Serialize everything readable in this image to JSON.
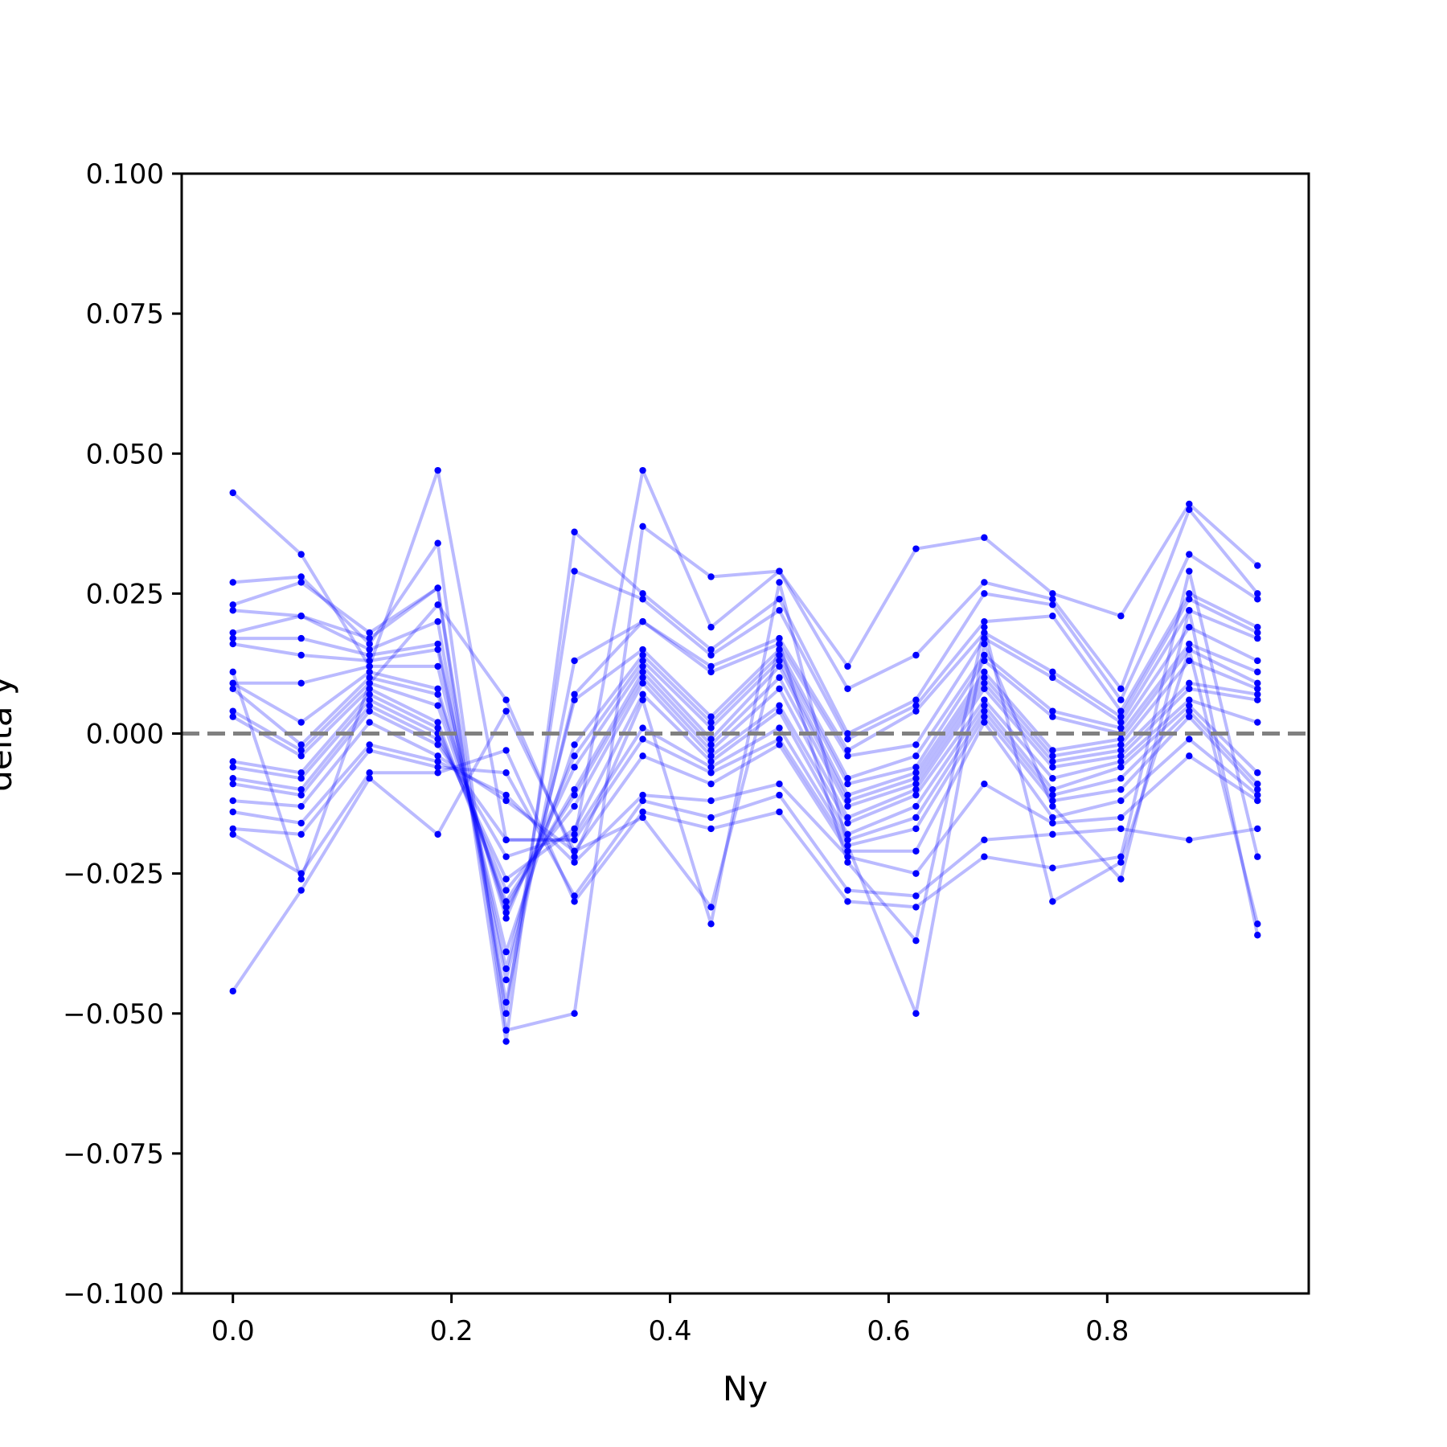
{
  "chart_data": {
    "type": "line",
    "xlabel": "Ny",
    "ylabel": "delta y",
    "xlim": [
      -0.046875,
      0.984375
    ],
    "ylim": [
      -0.1,
      0.1
    ],
    "x_ticks": [
      0.0,
      0.2,
      0.4,
      0.6,
      0.8
    ],
    "x_tick_labels": [
      "0.0",
      "0.2",
      "0.4",
      "0.6",
      "0.8"
    ],
    "y_ticks": [
      0.1,
      0.075,
      0.05,
      0.025,
      0.0,
      -0.025,
      -0.05,
      -0.075,
      -0.1
    ],
    "y_tick_labels": [
      "0.100",
      "0.075",
      "0.050",
      "0.025",
      "0.000",
      "−0.025",
      "−0.050",
      "−0.075",
      "−0.100"
    ],
    "grid": false,
    "legend": "none",
    "reference_line": {
      "y": 0.0,
      "style": "dashed",
      "color": "#808080"
    },
    "series_color": "#0000ff",
    "series_line_opacity": 0.27,
    "x": [
      0.0,
      0.0625,
      0.125,
      0.1875,
      0.25,
      0.3125,
      0.375,
      0.4375,
      0.5,
      0.5625,
      0.625,
      0.6875,
      0.75,
      0.8125,
      0.875,
      0.9375
    ],
    "series": [
      {
        "values": [
          0.043,
          0.032,
          0.012,
          0.047,
          -0.019,
          -0.019,
          0.047,
          0.019,
          0.029,
          0.012,
          0.033,
          0.035,
          0.025,
          0.021,
          0.041,
          0.03
        ]
      },
      {
        "values": [
          0.027,
          0.028,
          0.016,
          0.034,
          -0.053,
          -0.05,
          0.037,
          0.028,
          0.029,
          0.008,
          0.014,
          0.027,
          0.024,
          0.008,
          0.04,
          0.025
        ]
      },
      {
        "values": [
          0.023,
          0.027,
          0.018,
          0.026,
          -0.055,
          0.036,
          0.025,
          0.015,
          0.024,
          0.0,
          0.006,
          0.025,
          0.023,
          0.006,
          0.032,
          0.024
        ]
      },
      {
        "values": [
          0.022,
          0.021,
          0.017,
          0.026,
          -0.05,
          0.029,
          0.024,
          0.014,
          0.022,
          -0.001,
          0.005,
          0.02,
          0.021,
          0.004,
          0.025,
          0.019
        ]
      },
      {
        "values": [
          0.018,
          0.021,
          0.015,
          0.02,
          -0.048,
          0.013,
          0.02,
          0.012,
          0.017,
          -0.003,
          0.004,
          0.018,
          0.011,
          0.003,
          0.024,
          0.018
        ]
      },
      {
        "values": [
          0.017,
          0.017,
          0.014,
          0.016,
          -0.044,
          0.007,
          0.02,
          0.011,
          0.016,
          -0.004,
          -0.002,
          0.017,
          0.01,
          0.002,
          0.022,
          0.017
        ]
      },
      {
        "values": [
          0.016,
          0.014,
          0.013,
          0.015,
          -0.042,
          0.006,
          0.015,
          0.003,
          0.015,
          -0.008,
          -0.004,
          0.014,
          0.004,
          0.001,
          0.019,
          0.013
        ]
      },
      {
        "values": [
          0.009,
          0.009,
          0.012,
          0.012,
          -0.039,
          -0.002,
          0.014,
          0.002,
          0.014,
          -0.009,
          -0.006,
          0.013,
          0.003,
          0.0,
          0.016,
          0.011
        ]
      },
      {
        "values": [
          0.009,
          0.002,
          0.011,
          0.008,
          -0.033,
          -0.004,
          0.013,
          0.001,
          0.013,
          -0.011,
          -0.007,
          0.011,
          -0.003,
          -0.001,
          0.015,
          0.009
        ]
      },
      {
        "values": [
          0.008,
          -0.002,
          0.01,
          0.007,
          -0.032,
          -0.006,
          0.012,
          -0.001,
          0.012,
          -0.012,
          -0.008,
          0.01,
          -0.004,
          -0.002,
          0.013,
          0.008
        ]
      },
      {
        "values": [
          0.004,
          -0.003,
          0.009,
          0.005,
          -0.031,
          -0.01,
          0.011,
          -0.002,
          0.01,
          -0.013,
          -0.009,
          0.009,
          -0.005,
          -0.003,
          0.009,
          0.007
        ]
      },
      {
        "values": [
          0.003,
          -0.004,
          0.008,
          0.002,
          -0.03,
          -0.011,
          0.01,
          -0.003,
          0.008,
          -0.015,
          -0.01,
          0.008,
          -0.006,
          -0.004,
          0.008,
          0.006
        ]
      },
      {
        "values": [
          -0.005,
          -0.007,
          0.007,
          0.001,
          -0.028,
          -0.013,
          0.009,
          -0.004,
          0.005,
          -0.016,
          -0.011,
          0.006,
          -0.008,
          -0.005,
          0.006,
          0.002
        ]
      },
      {
        "values": [
          -0.006,
          -0.008,
          0.006,
          0.0,
          -0.026,
          -0.017,
          0.007,
          -0.005,
          0.004,
          -0.018,
          -0.013,
          0.005,
          -0.01,
          -0.006,
          0.005,
          -0.007
        ]
      },
      {
        "values": [
          -0.008,
          -0.01,
          0.005,
          -0.001,
          -0.022,
          -0.018,
          0.001,
          -0.006,
          0.001,
          -0.019,
          -0.015,
          0.004,
          -0.011,
          -0.008,
          0.004,
          -0.009
        ]
      },
      {
        "values": [
          -0.009,
          -0.011,
          0.004,
          -0.002,
          -0.019,
          -0.019,
          -0.001,
          -0.007,
          -0.001,
          -0.02,
          -0.017,
          0.003,
          -0.012,
          -0.01,
          0.003,
          -0.01
        ]
      },
      {
        "values": [
          -0.012,
          -0.013,
          0.002,
          -0.004,
          -0.012,
          -0.021,
          -0.004,
          -0.009,
          -0.002,
          -0.021,
          -0.021,
          0.002,
          -0.015,
          -0.012,
          -0.001,
          -0.011
        ]
      },
      {
        "values": [
          -0.014,
          -0.016,
          -0.002,
          -0.005,
          -0.011,
          -0.023,
          -0.011,
          -0.012,
          -0.009,
          -0.022,
          -0.025,
          -0.009,
          -0.016,
          -0.015,
          -0.004,
          -0.012
        ]
      },
      {
        "values": [
          -0.017,
          -0.018,
          -0.003,
          -0.006,
          -0.007,
          -0.029,
          -0.012,
          -0.015,
          -0.011,
          -0.028,
          -0.029,
          -0.019,
          -0.018,
          -0.017,
          -0.019,
          -0.017
        ]
      },
      {
        "values": [
          -0.018,
          -0.025,
          -0.007,
          -0.007,
          -0.003,
          -0.03,
          -0.014,
          -0.017,
          -0.014,
          -0.03,
          -0.031,
          -0.022,
          -0.024,
          -0.022,
          0.029,
          -0.022
        ]
      },
      {
        "values": [
          -0.046,
          -0.028,
          -0.008,
          -0.018,
          0.004,
          -0.021,
          -0.015,
          -0.031,
          0.016,
          -0.023,
          -0.037,
          0.019,
          -0.03,
          -0.023,
          0.015,
          -0.034
        ]
      },
      {
        "values": [
          0.011,
          -0.026,
          0.009,
          0.023,
          0.006,
          -0.022,
          0.006,
          -0.034,
          0.027,
          -0.02,
          -0.05,
          0.016,
          -0.013,
          -0.026,
          0.022,
          -0.036
        ]
      }
    ]
  }
}
